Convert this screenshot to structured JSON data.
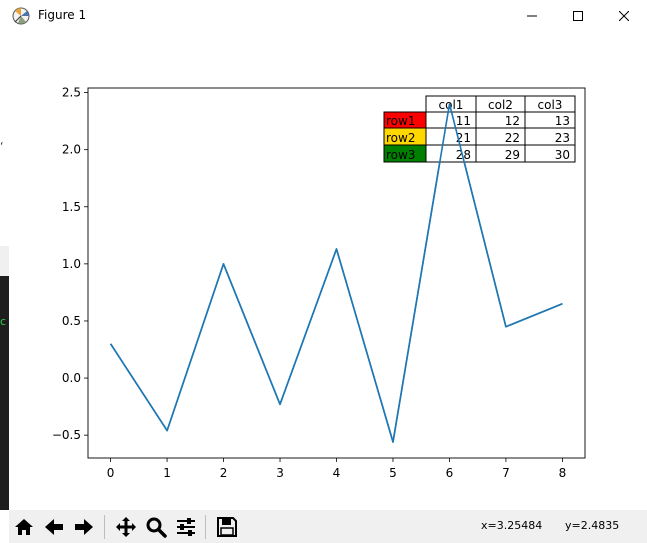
{
  "window": {
    "title": "Figure 1",
    "minimize_glyph": "—",
    "maximize_glyph": "□",
    "close_glyph": "✕"
  },
  "left_strip": {
    "glyph_top": "‘",
    "glyph_bottom": "c"
  },
  "toolbar": {
    "buttons": [
      {
        "name": "home-button",
        "icon": "home-icon"
      },
      {
        "name": "back-button",
        "icon": "arrow-left-icon"
      },
      {
        "name": "forward-button",
        "icon": "arrow-right-icon"
      },
      {
        "name": "pan-button",
        "icon": "move-icon"
      },
      {
        "name": "zoom-button",
        "icon": "magnifier-icon"
      },
      {
        "name": "configure-subplots-button",
        "icon": "sliders-icon"
      },
      {
        "name": "save-button",
        "icon": "floppy-disk-icon"
      }
    ],
    "coord_x": "x=3.25484",
    "coord_y": "y=2.4835"
  },
  "chart_data": {
    "type": "line",
    "title": "",
    "xlabel": "",
    "ylabel": "",
    "x": [
      0,
      1,
      2,
      3,
      4,
      5,
      6,
      7,
      8
    ],
    "series": [
      {
        "color": "#1f77b4",
        "values": [
          0.3,
          -0.46,
          1.0,
          -0.23,
          1.13,
          -0.56,
          2.4,
          0.45,
          0.65
        ]
      }
    ],
    "xlim": [
      -0.4,
      8.4
    ],
    "ylim": [
      -0.7,
      2.54
    ],
    "xticks": [
      0,
      1,
      2,
      3,
      4,
      5,
      6,
      7,
      8
    ],
    "yticks": [
      -0.5,
      0.0,
      0.5,
      1.0,
      1.5,
      2.0,
      2.5
    ],
    "ytick_labels": [
      "−0.5",
      "0.0",
      "0.5",
      "1.0",
      "1.5",
      "2.0",
      "2.5"
    ],
    "grid": false,
    "table": {
      "placement": "top-right",
      "col_labels": [
        "col1",
        "col2",
        "col3"
      ],
      "row_labels": [
        "row1",
        "row2",
        "row3"
      ],
      "row_colors": [
        "#ff0000",
        "#ffd700",
        "#008000"
      ],
      "cells": [
        [
          "11",
          "12",
          "13"
        ],
        [
          "21",
          "22",
          "23"
        ],
        [
          "28",
          "29",
          "30"
        ]
      ]
    }
  }
}
